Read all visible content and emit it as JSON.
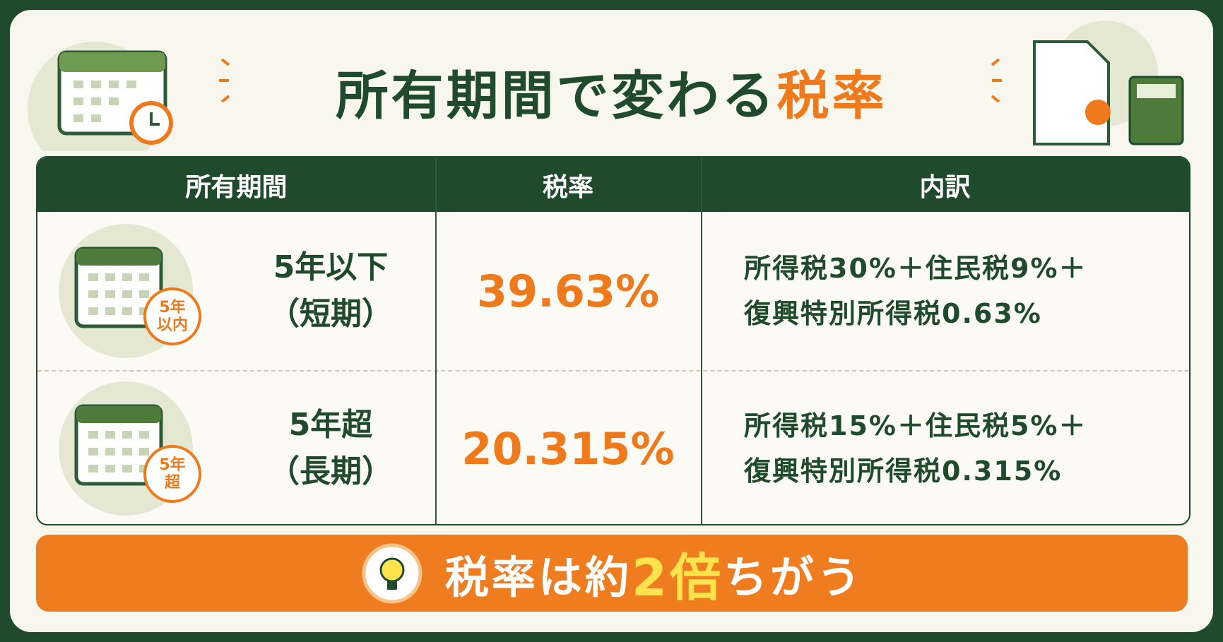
{
  "title": {
    "main": "所有期間で変わる",
    "accent": "税率"
  },
  "table": {
    "headers": [
      "所有期間",
      "税率",
      "内訳"
    ],
    "rows": [
      {
        "badge": [
          "5年",
          "以内"
        ],
        "period": [
          "5年以下",
          "（短期）"
        ],
        "rate": "39.63%",
        "breakdown": [
          "所得税30%＋住民税9%＋",
          "復興特別所得税0.63%"
        ]
      },
      {
        "badge": [
          "5年",
          "超"
        ],
        "period": [
          "5年超",
          "（長期）"
        ],
        "rate": "20.315%",
        "breakdown": [
          "所得税15%＋住民税5%＋",
          "復興特別所得税0.315%"
        ]
      }
    ]
  },
  "footer": {
    "before": "税率は約",
    "accent": "2倍",
    "after": "ちがう"
  }
}
